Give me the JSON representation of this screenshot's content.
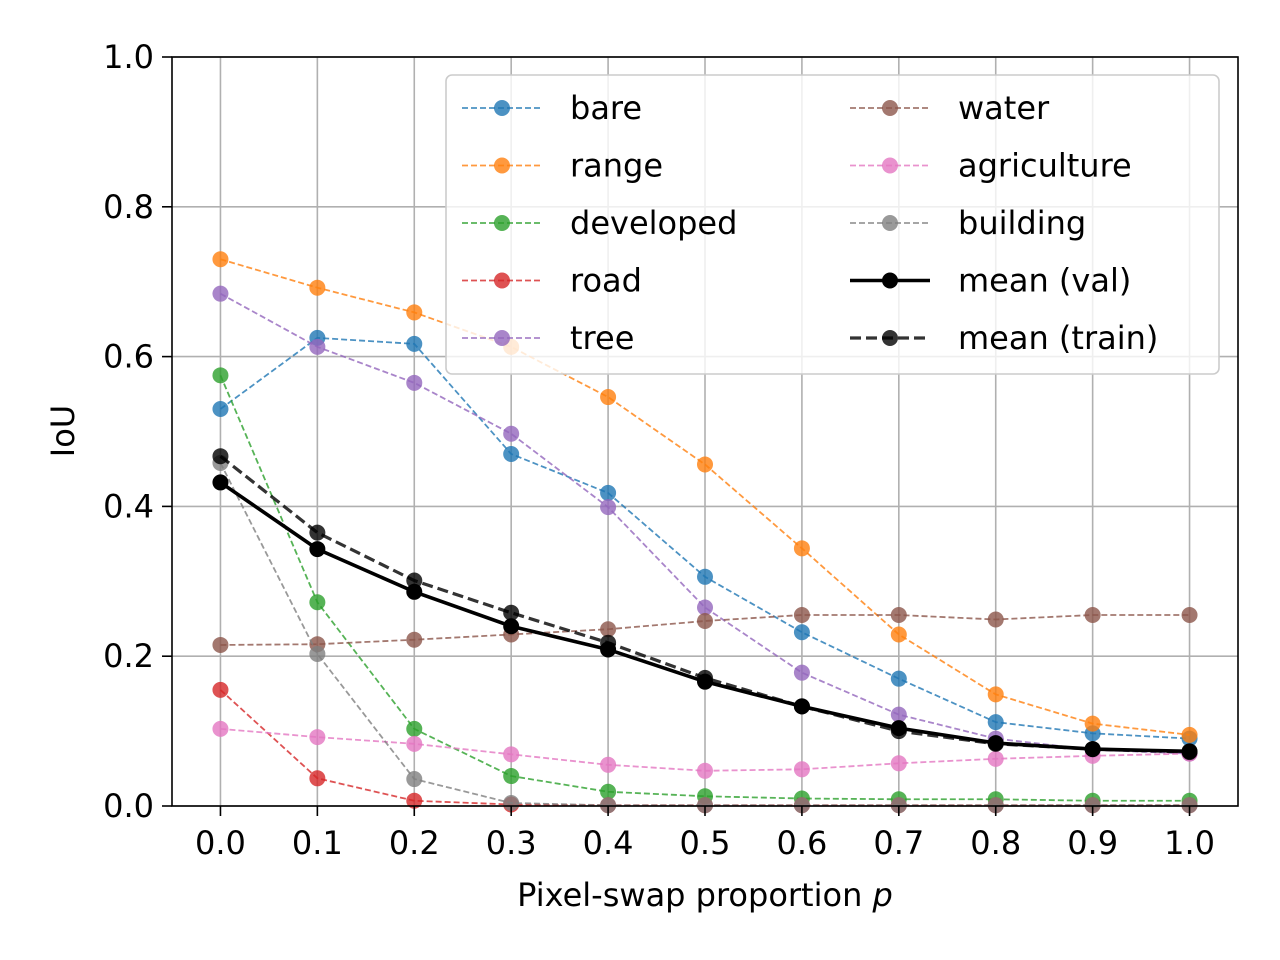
{
  "chart_data": {
    "type": "line",
    "title": "",
    "xlabel": "Pixel-swap proportion",
    "xlabel_var": "p",
    "ylabel": "IoU",
    "xlim": [
      -0.05,
      1.05
    ],
    "ylim": [
      0.0,
      1.0
    ],
    "grid": true,
    "legend_position": "top-right",
    "x": [
      0.0,
      0.1,
      0.2,
      0.3,
      0.4,
      0.5,
      0.6,
      0.7,
      0.8,
      0.9,
      1.0
    ],
    "x_tick_labels": [
      "0.0",
      "0.1",
      "0.2",
      "0.3",
      "0.4",
      "0.5",
      "0.6",
      "0.7",
      "0.8",
      "0.9",
      "1.0"
    ],
    "y_ticks": [
      0.0,
      0.2,
      0.4,
      0.6,
      0.8,
      1.0
    ],
    "y_tick_labels": [
      "0.0",
      "0.2",
      "0.4",
      "0.6",
      "0.8",
      "1.0"
    ],
    "series": [
      {
        "name": "bare",
        "color": "#1f77b4",
        "style": "dashed-thin",
        "values": [
          0.53,
          0.625,
          0.617,
          0.47,
          0.418,
          0.306,
          0.232,
          0.17,
          0.112,
          0.097,
          0.09
        ]
      },
      {
        "name": "range",
        "color": "#ff7f0e",
        "style": "dashed-thin",
        "values": [
          0.73,
          0.692,
          0.659,
          0.613,
          0.546,
          0.456,
          0.344,
          0.229,
          0.149,
          0.11,
          0.095
        ]
      },
      {
        "name": "developed",
        "color": "#2ca02c",
        "style": "dashed-thin",
        "values": [
          0.575,
          0.272,
          0.103,
          0.04,
          0.019,
          0.013,
          0.01,
          0.009,
          0.009,
          0.007,
          0.007
        ]
      },
      {
        "name": "road",
        "color": "#d62728",
        "style": "dashed-thin",
        "values": [
          0.155,
          0.037,
          0.007,
          0.002,
          0.001,
          0.001,
          0.001,
          0.001,
          0.001,
          0.001,
          0.001
        ]
      },
      {
        "name": "tree",
        "color": "#9467bd",
        "style": "dashed-thin",
        "values": [
          0.684,
          0.613,
          0.565,
          0.497,
          0.399,
          0.265,
          0.178,
          0.122,
          0.09,
          0.075,
          0.07
        ]
      },
      {
        "name": "water",
        "color": "#8c564b",
        "style": "dashed-thin",
        "values": [
          0.215,
          0.216,
          0.222,
          0.229,
          0.236,
          0.247,
          0.255,
          0.255,
          0.249,
          0.255,
          0.255
        ]
      },
      {
        "name": "agriculture",
        "color": "#e377c2",
        "style": "dashed-thin",
        "values": [
          0.103,
          0.092,
          0.083,
          0.069,
          0.055,
          0.047,
          0.049,
          0.057,
          0.063,
          0.067,
          0.07
        ]
      },
      {
        "name": "building",
        "color": "#7f7f7f",
        "style": "dashed-thin",
        "values": [
          0.458,
          0.203,
          0.036,
          0.004,
          0.001,
          0.001,
          0.001,
          0.001,
          0.001,
          0.001,
          0.001
        ]
      },
      {
        "name": "mean (val)",
        "color": "#000000",
        "style": "solid-thick",
        "values": [
          0.432,
          0.343,
          0.286,
          0.24,
          0.209,
          0.166,
          0.133,
          0.104,
          0.084,
          0.076,
          0.073
        ]
      },
      {
        "name": "mean (train)",
        "color": "#000000",
        "style": "dashed-thick",
        "values": [
          0.467,
          0.365,
          0.301,
          0.258,
          0.218,
          0.171,
          0.133,
          0.1,
          0.083,
          0.076,
          0.072
        ]
      }
    ]
  }
}
